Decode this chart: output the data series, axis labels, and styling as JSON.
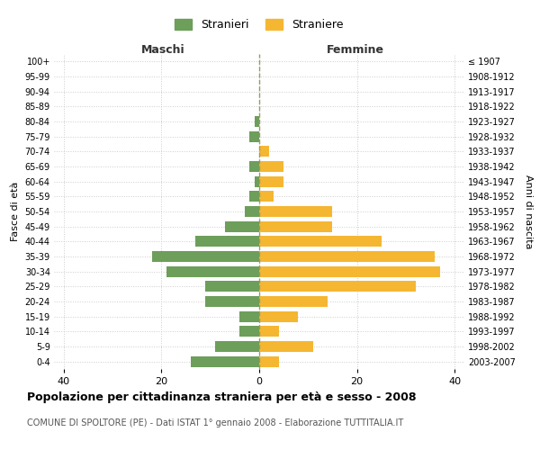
{
  "age_groups": [
    "0-4",
    "5-9",
    "10-14",
    "15-19",
    "20-24",
    "25-29",
    "30-34",
    "35-39",
    "40-44",
    "45-49",
    "50-54",
    "55-59",
    "60-64",
    "65-69",
    "70-74",
    "75-79",
    "80-84",
    "85-89",
    "90-94",
    "95-99",
    "100+"
  ],
  "birth_years": [
    "2003-2007",
    "1998-2002",
    "1993-1997",
    "1988-1992",
    "1983-1987",
    "1978-1982",
    "1973-1977",
    "1968-1972",
    "1963-1967",
    "1958-1962",
    "1953-1957",
    "1948-1952",
    "1943-1947",
    "1938-1942",
    "1933-1937",
    "1928-1932",
    "1923-1927",
    "1918-1922",
    "1913-1917",
    "1908-1912",
    "≤ 1907"
  ],
  "males": [
    14,
    9,
    4,
    4,
    11,
    11,
    19,
    22,
    13,
    7,
    3,
    2,
    1,
    2,
    0,
    2,
    1,
    0,
    0,
    0,
    0
  ],
  "females": [
    4,
    11,
    4,
    8,
    14,
    32,
    37,
    36,
    25,
    15,
    15,
    3,
    5,
    5,
    2,
    0,
    0,
    0,
    0,
    0,
    0
  ],
  "male_color": "#6d9e5a",
  "female_color": "#f5b731",
  "grid_color": "#cccccc",
  "center_line_color": "#999966",
  "background_color": "#ffffff",
  "title": "Popolazione per cittadinanza straniera per età e sesso - 2008",
  "subtitle": "COMUNE DI SPOLTORE (PE) - Dati ISTAT 1° gennaio 2008 - Elaborazione TUTTITALIA.IT",
  "xlabel_left": "Maschi",
  "xlabel_right": "Femmine",
  "ylabel_left": "Fasce di età",
  "ylabel_right": "Anni di nascita",
  "legend_male": "Stranieri",
  "legend_female": "Straniere",
  "xlim": 42,
  "bar_height": 0.72
}
